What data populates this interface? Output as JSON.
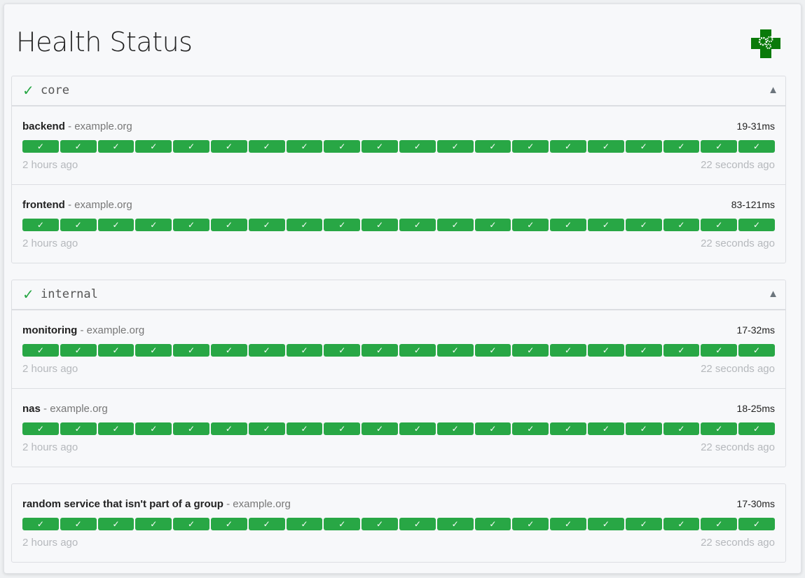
{
  "title": "Health Status",
  "logo": "health-gear-cross-logo",
  "colors": {
    "success": "#28a745",
    "logo": "#0a7a0a"
  },
  "groups": [
    {
      "name": "core",
      "status_icon": "check-icon",
      "toggle": "▲",
      "services": [
        {
          "name": "backend",
          "host": "example.org",
          "range": "19-31ms",
          "results": 20,
          "oldest": "2 hours ago",
          "newest": "22 seconds ago"
        },
        {
          "name": "frontend",
          "host": "example.org",
          "range": "83-121ms",
          "results": 20,
          "oldest": "2 hours ago",
          "newest": "22 seconds ago"
        }
      ]
    },
    {
      "name": "internal",
      "status_icon": "check-icon",
      "toggle": "▲",
      "services": [
        {
          "name": "monitoring",
          "host": "example.org",
          "range": "17-32ms",
          "results": 20,
          "oldest": "2 hours ago",
          "newest": "22 seconds ago"
        },
        {
          "name": "nas",
          "host": "example.org",
          "range": "18-25ms",
          "results": 20,
          "oldest": "2 hours ago",
          "newest": "22 seconds ago"
        }
      ]
    }
  ],
  "ungrouped": [
    {
      "name": "random service that isn't part of a group",
      "host": "example.org",
      "range": "17-30ms",
      "results": 20,
      "oldest": "2 hours ago",
      "newest": "22 seconds ago"
    }
  ],
  "check": "✓",
  "separator": " - "
}
